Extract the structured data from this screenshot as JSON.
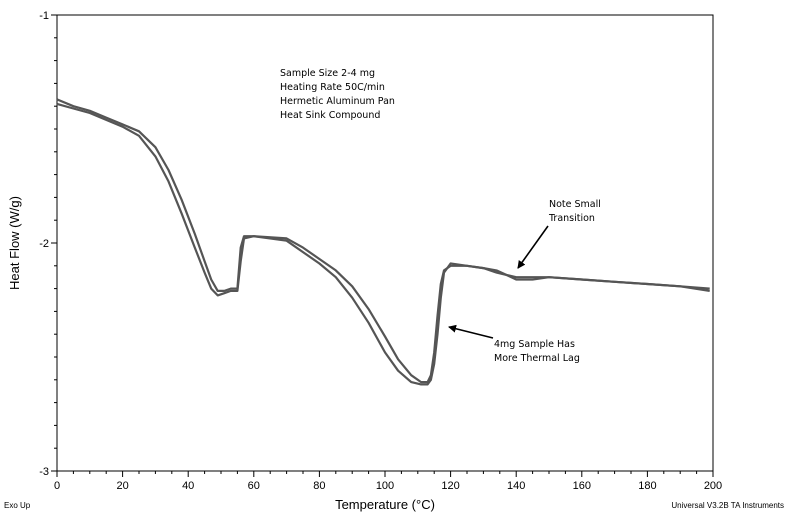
{
  "chart_data": {
    "type": "line",
    "title": "",
    "xlabel": "Temperature (°C)",
    "ylabel": "Heat Flow (W/g)",
    "xlim": [
      0,
      200
    ],
    "ylim": [
      -3,
      -1
    ],
    "x_ticks": [
      0,
      20,
      40,
      60,
      80,
      100,
      120,
      140,
      160,
      180,
      200
    ],
    "y_ticks": [
      -1,
      -2,
      -3
    ],
    "x_tick_labels": [
      "0",
      "20",
      "40",
      "60",
      "80",
      "100",
      "120",
      "140",
      "160",
      "180",
      "200"
    ],
    "y_tick_labels": [
      "-1",
      "-2",
      "-3"
    ],
    "grid": false,
    "line_color": "#555555",
    "series": [
      {
        "x": [
          0,
          5,
          10,
          15,
          20,
          25,
          30,
          34,
          38,
          42,
          45,
          47,
          49,
          51,
          53,
          55,
          56,
          57,
          60,
          70,
          75,
          80,
          85,
          90,
          95,
          100,
          104,
          108,
          111,
          113,
          114,
          115,
          116,
          117,
          118,
          120,
          125,
          130,
          134,
          137,
          140,
          145,
          150,
          160,
          170,
          180,
          190,
          199
        ],
        "y": [
          -1.39,
          -1.41,
          -1.43,
          -1.46,
          -1.49,
          -1.53,
          -1.62,
          -1.73,
          -1.87,
          -2.02,
          -2.13,
          -2.2,
          -2.23,
          -2.22,
          -2.21,
          -2.21,
          -2.08,
          -1.98,
          -1.97,
          -1.98,
          -2.02,
          -2.07,
          -2.12,
          -2.19,
          -2.29,
          -2.41,
          -2.51,
          -2.58,
          -2.61,
          -2.61,
          -2.58,
          -2.48,
          -2.32,
          -2.18,
          -2.12,
          -2.1,
          -2.1,
          -2.11,
          -2.12,
          -2.14,
          -2.15,
          -2.15,
          -2.15,
          -2.16,
          -2.17,
          -2.18,
          -2.19,
          -2.2
        ]
      },
      {
        "x": [
          0,
          5,
          10,
          15,
          20,
          25,
          30,
          34,
          38,
          42,
          45,
          47,
          49,
          51,
          53,
          55,
          56,
          57,
          60,
          70,
          75,
          80,
          85,
          90,
          95,
          100,
          104,
          108,
          111,
          113,
          114,
          115,
          116,
          117,
          118,
          120,
          125,
          130,
          134,
          137,
          140,
          145,
          150,
          160,
          170,
          180,
          190,
          199
        ],
        "y": [
          -1.37,
          -1.4,
          -1.42,
          -1.45,
          -1.48,
          -1.51,
          -1.58,
          -1.68,
          -1.81,
          -1.96,
          -2.08,
          -2.16,
          -2.21,
          -2.21,
          -2.2,
          -2.2,
          -2.02,
          -1.97,
          -1.97,
          -1.99,
          -2.04,
          -2.09,
          -2.15,
          -2.24,
          -2.35,
          -2.48,
          -2.56,
          -2.61,
          -2.62,
          -2.62,
          -2.6,
          -2.53,
          -2.4,
          -2.24,
          -2.13,
          -2.09,
          -2.1,
          -2.11,
          -2.13,
          -2.14,
          -2.16,
          -2.16,
          -2.15,
          -2.16,
          -2.17,
          -2.18,
          -2.19,
          -2.21
        ]
      }
    ],
    "annotations": [
      {
        "lines": [
          "Sample Size 2-4 mg",
          "Heating Rate 50C/min",
          "Hermetic Aluminum Pan",
          "Heat Sink Compound"
        ]
      },
      {
        "lines": [
          "Note Small",
          "Transition"
        ],
        "arrow_to": [
          139,
          -2.13
        ]
      },
      {
        "lines": [
          "4mg Sample Has",
          "More Thermal Lag"
        ],
        "arrow_to": [
          117,
          -2.38
        ]
      }
    ],
    "footer_left": "Exo Up",
    "footer_right": "Universal V3.2B TA Instruments"
  }
}
